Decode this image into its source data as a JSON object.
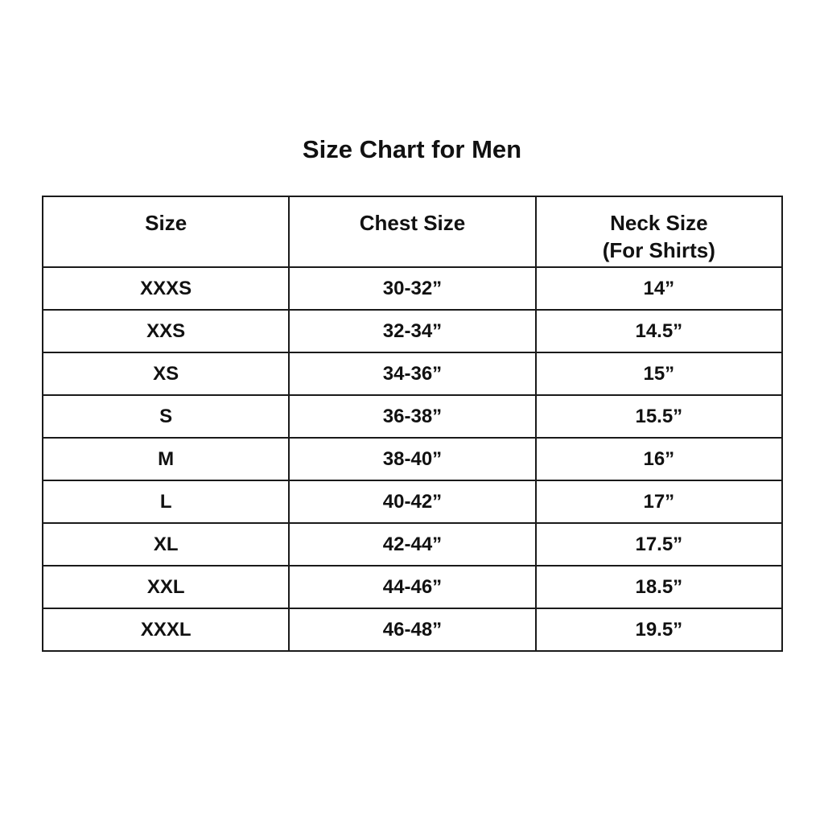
{
  "title": "Size Chart for Men",
  "headers": [
    {
      "line1": "Size",
      "line2": ""
    },
    {
      "line1": "Chest Size",
      "line2": ""
    },
    {
      "line1": "Neck Size",
      "line2": "(For Shirts)"
    }
  ],
  "rows": [
    [
      "XXXS",
      "30-32”",
      "14”"
    ],
    [
      "XXS",
      "32-34”",
      "14.5”"
    ],
    [
      "XS",
      "34-36”",
      "15”"
    ],
    [
      "S",
      "36-38”",
      "15.5”"
    ],
    [
      "M",
      "38-40”",
      "16”"
    ],
    [
      "L",
      "40-42”",
      "17”"
    ],
    [
      "XL",
      "42-44”",
      "17.5”"
    ],
    [
      "XXL",
      "44-46”",
      "18.5”"
    ],
    [
      "XXXL",
      "46-48”",
      "19.5”"
    ]
  ]
}
